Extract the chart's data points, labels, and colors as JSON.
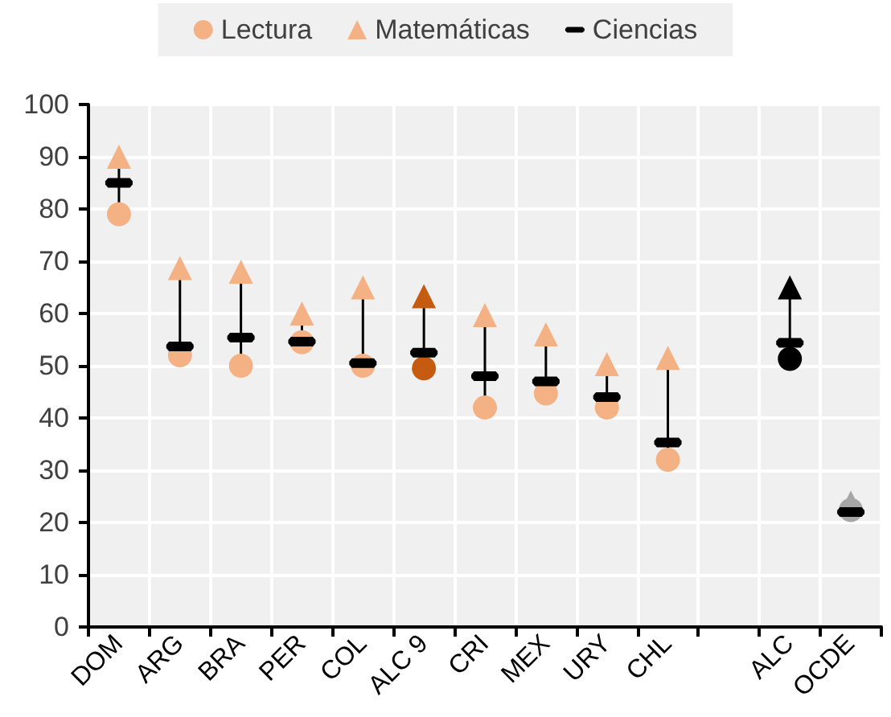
{
  "chart_data": {
    "type": "scatter",
    "categories": [
      "DOM",
      "ARG",
      "BRA",
      "PER",
      "COL",
      "ALC 9",
      "CRI",
      "MEX",
      "URY",
      "CHL",
      null,
      "ALC",
      "OCDE"
    ],
    "series": [
      {
        "name": "Lectura",
        "color": "#f4b183",
        "marker": "circle",
        "colors": [
          "#f4b183",
          "#f4b183",
          "#f4b183",
          "#f4b183",
          "#f4b183",
          "#c55a11",
          "#f4b183",
          "#f4b183",
          "#f4b183",
          "#f4b183",
          null,
          "#000000",
          "#a6a6a6"
        ],
        "values": [
          79,
          52,
          50,
          54.5,
          50,
          49.5,
          42,
          44.7,
          42,
          32,
          null,
          51.3,
          22.4
        ]
      },
      {
        "name": "Matemáticas",
        "color": "#f4b183",
        "marker": "triangle",
        "colors": [
          "#f4b183",
          "#f4b183",
          "#f4b183",
          "#f4b183",
          "#f4b183",
          "#c55a11",
          "#f4b183",
          "#f4b183",
          "#f4b183",
          "#f4b183",
          null,
          "#000000",
          "#a6a6a6"
        ],
        "values": [
          90,
          68.7,
          68,
          60,
          65,
          63.3,
          59.7,
          56,
          50.3,
          51.5,
          null,
          65,
          23.8
        ]
      },
      {
        "name": "Ciencias",
        "color": "#000000",
        "values": [
          85,
          53.7,
          55.4,
          54.6,
          50.5,
          52.5,
          48,
          47,
          44,
          35.3,
          null,
          54.4,
          22
        ]
      }
    ],
    "ylim": [
      0,
      100
    ],
    "yticks": [
      0,
      10,
      20,
      30,
      40,
      50,
      60,
      70,
      80,
      90,
      100
    ],
    "grid": true,
    "legend": "top"
  }
}
